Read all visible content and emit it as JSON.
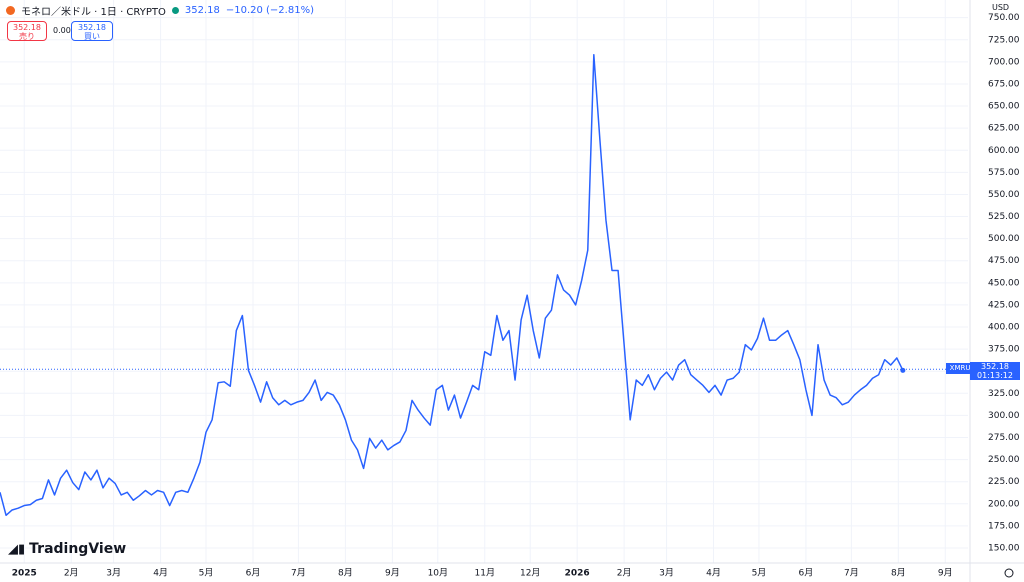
{
  "header": {
    "title": "モネロ／米ドル · 1日 · CRYPTO",
    "change": "−10.20 (−2.81%)",
    "sell_price": "352.18",
    "sell_label": "売り",
    "spread": "0.00",
    "buy_price": "352.18",
    "buy_label": "買い",
    "currency": "USD",
    "brand": "TradingView"
  },
  "chart_data": {
    "type": "line",
    "series": [
      {
        "name": "XMRUSD",
        "color": "#2962ff",
        "values": [
          213,
          187,
          193,
          195,
          198,
          199,
          204,
          206,
          227,
          210,
          229,
          238,
          224,
          216,
          236,
          227,
          238,
          218,
          229,
          223,
          210,
          213,
          204,
          209,
          215,
          210,
          215,
          213,
          198,
          213,
          215,
          213,
          229,
          247,
          281,
          295,
          337,
          338,
          333,
          396,
          413,
          351,
          334,
          315,
          338,
          320,
          312,
          317,
          312,
          315,
          317,
          326,
          340,
          317,
          326,
          323,
          312,
          295,
          272,
          261,
          240,
          274,
          263,
          272,
          261,
          266,
          270,
          283,
          317,
          306,
          297,
          289,
          329,
          334,
          306,
          323,
          297,
          315,
          334,
          329,
          372,
          368,
          413,
          385,
          396,
          340,
          408,
          436,
          396,
          365,
          410,
          419,
          459,
          442,
          436,
          425,
          453,
          487,
          708,
          612,
          521,
          464,
          464,
          380,
          295,
          340,
          334,
          346,
          329,
          342,
          349,
          340,
          357,
          363,
          346,
          340,
          334,
          326,
          334,
          323,
          340,
          342,
          349,
          380,
          374,
          387,
          410,
          385,
          385,
          391,
          396,
          380,
          363,
          329,
          300,
          380,
          340,
          323,
          320,
          312,
          315,
          323,
          329,
          334,
          342,
          346,
          363,
          357,
          365,
          351
        ]
      }
    ],
    "price_line": {
      "symbol": "XMRUSD",
      "value": 352.18,
      "countdown": "01:13:12"
    },
    "xlim": [
      0,
      159.75
    ],
    "ylim": [
      133,
      770
    ],
    "xticks": [
      {
        "value": 4,
        "label": "2025"
      },
      {
        "value": 11.75,
        "label": "2月"
      },
      {
        "value": 18.75,
        "label": "3月"
      },
      {
        "value": 26.5,
        "label": "4月"
      },
      {
        "value": 34,
        "label": "5月"
      },
      {
        "value": 41.75,
        "label": "6月"
      },
      {
        "value": 49.25,
        "label": "7月"
      },
      {
        "value": 57,
        "label": "8月"
      },
      {
        "value": 64.75,
        "label": "9月"
      },
      {
        "value": 72.25,
        "label": "10月"
      },
      {
        "value": 80,
        "label": "11月"
      },
      {
        "value": 87.5,
        "label": "12月"
      },
      {
        "value": 95.25,
        "label": "2026"
      },
      {
        "value": 103,
        "label": "2月"
      },
      {
        "value": 110,
        "label": "3月"
      },
      {
        "value": 117.75,
        "label": "4月"
      },
      {
        "value": 125.25,
        "label": "5月"
      },
      {
        "value": 133,
        "label": "6月"
      },
      {
        "value": 140.5,
        "label": "7月"
      },
      {
        "value": 148.25,
        "label": "8月"
      },
      {
        "value": 156,
        "label": "9月"
      }
    ],
    "yticks": [
      {
        "value": 150,
        "label": "150.00"
      },
      {
        "value": 175,
        "label": "175.00"
      },
      {
        "value": 200,
        "label": "200.00"
      },
      {
        "value": 225,
        "label": "225.00"
      },
      {
        "value": 250,
        "label": "250.00"
      },
      {
        "value": 275,
        "label": "275.00"
      },
      {
        "value": 300,
        "label": "300.00"
      },
      {
        "value": 325,
        "label": "325.00"
      },
      {
        "value": 350,
        "label": "350.00"
      },
      {
        "value": 375,
        "label": "375.00"
      },
      {
        "value": 400,
        "label": "400.00"
      },
      {
        "value": 425,
        "label": "425.00"
      },
      {
        "value": 450,
        "label": "450.00"
      },
      {
        "value": 475,
        "label": "475.00"
      },
      {
        "value": 500,
        "label": "500.00"
      },
      {
        "value": 525,
        "label": "525.00"
      },
      {
        "value": 550,
        "label": "550.00"
      },
      {
        "value": 575,
        "label": "575.00"
      },
      {
        "value": 600,
        "label": "600.00"
      },
      {
        "value": 625,
        "label": "625.00"
      },
      {
        "value": 650,
        "label": "650.00"
      },
      {
        "value": 675,
        "label": "675.00"
      },
      {
        "value": 700,
        "label": "700.00"
      },
      {
        "value": 725,
        "label": "725.00"
      },
      {
        "value": 750,
        "label": "750.00"
      }
    ],
    "grid": true
  }
}
